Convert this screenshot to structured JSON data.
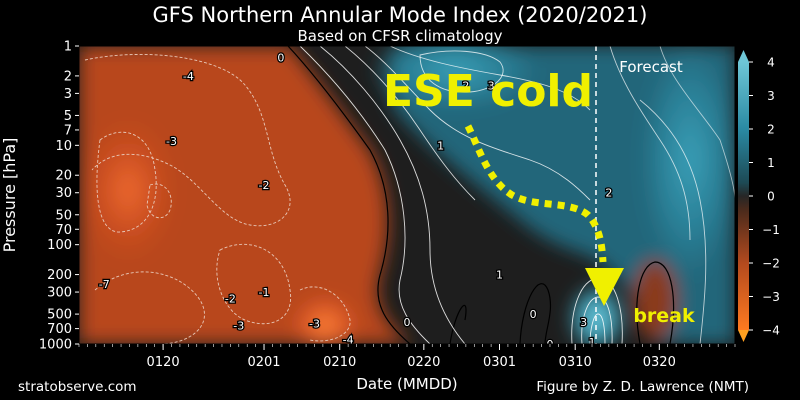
{
  "chart_data": {
    "type": "heatmap",
    "title": "GFS Northern Annular Mode Index (2020/2021)",
    "subtitle": "Based on CFSR climatology",
    "xlabel": "Date (MMDD)",
    "ylabel": "Pressure [hPa]",
    "x_ticks": [
      "0120",
      "0201",
      "0210",
      "0220",
      "0301",
      "0310",
      "0320"
    ],
    "y_ticks": [
      1,
      2,
      3,
      5,
      7,
      10,
      20,
      30,
      50,
      70,
      100,
      200,
      300,
      500,
      700,
      1000
    ],
    "y_scale": "log",
    "y_inverted": true,
    "colorbar": {
      "range": [
        -4,
        4
      ],
      "ticks": [
        4,
        3,
        2,
        1,
        0,
        -1,
        -2,
        -3,
        -4
      ],
      "colors": {
        "negative": "#e05a28",
        "neutral": "#262626",
        "positive": "#2f8ea5"
      }
    },
    "forecast_label": "Forecast",
    "contour_labels": [
      {
        "text": "-4",
        "x": "0123",
        "p": 2
      },
      {
        "text": "0",
        "x": "0203",
        "p": 1.3
      },
      {
        "text": "-3",
        "x": "0121",
        "p": 9
      },
      {
        "text": "-2",
        "x": "0201",
        "p": 25
      },
      {
        "text": "1",
        "x": "0222",
        "p": 10
      },
      {
        "text": "2",
        "x": "0225",
        "p": 2.5
      },
      {
        "text": "3",
        "x": "0228",
        "p": 2.5
      },
      {
        "text": "2",
        "x": "0314",
        "p": 30
      },
      {
        "text": "-1",
        "x": "0201",
        "p": 300
      },
      {
        "text": "-2",
        "x": "0128",
        "p": 350
      },
      {
        "text": "-3",
        "x": "0129",
        "p": 650
      },
      {
        "text": "-3",
        "x": "0207",
        "p": 620
      },
      {
        "text": "-4",
        "x": "0211",
        "p": 900
      },
      {
        "text": "0",
        "x": "0218",
        "p": 600
      },
      {
        "text": "0",
        "x": "0305",
        "p": 500
      },
      {
        "text": "1",
        "x": "0301",
        "p": 200
      },
      {
        "text": "3",
        "x": "0311",
        "p": 600
      },
      {
        "text": "1",
        "x": "0312",
        "p": 950
      },
      {
        "text": "0",
        "x": "0307",
        "p": 1000
      },
      {
        "text": "-7",
        "x": "0113",
        "p": 250
      }
    ],
    "annotations": [
      {
        "text": "ESE cold",
        "color": "#f0f000"
      },
      {
        "text": "break",
        "color": "#f0f000"
      }
    ]
  },
  "footer": {
    "left": "stratobserve.com",
    "right": "Figure by Z. D. Lawrence (NMT)"
  }
}
